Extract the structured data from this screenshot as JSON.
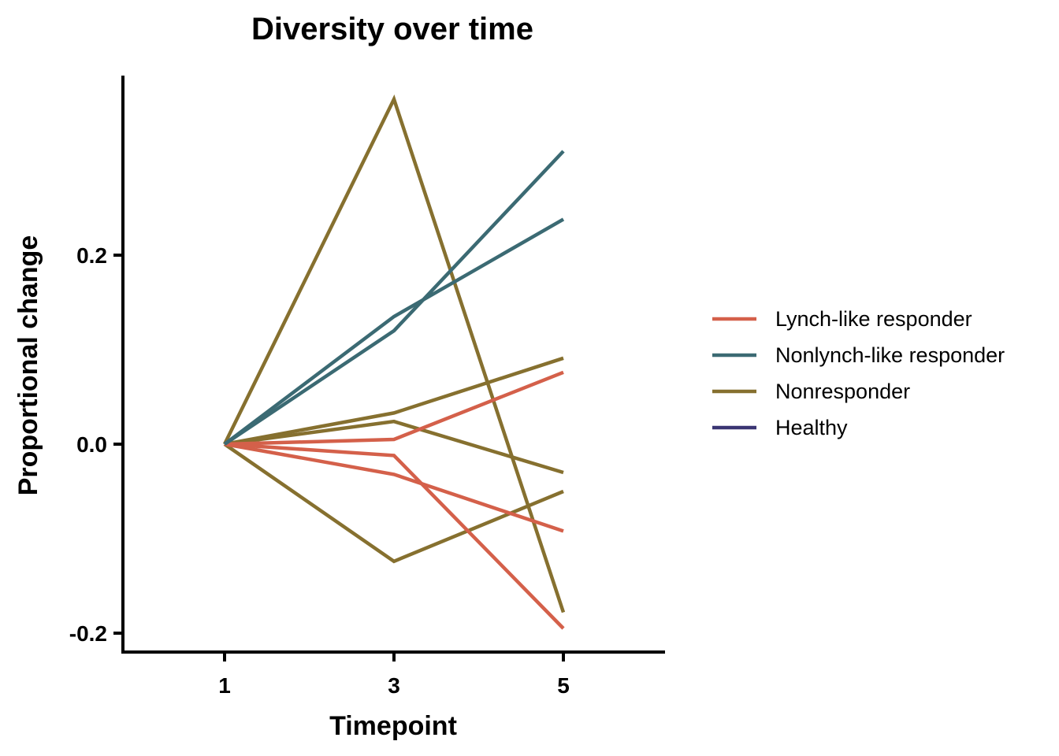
{
  "chart_data": {
    "type": "line",
    "title": "Diversity over time",
    "xlabel": "Timepoint",
    "ylabel": "Proportional change",
    "x": [
      1,
      3,
      5
    ],
    "x_tick_labels": [
      "1",
      "3",
      "5"
    ],
    "xlim": [
      -0.2,
      6.2
    ],
    "ylim": [
      -0.22,
      0.39
    ],
    "y_ticks": [
      -0.2,
      0.0,
      0.2
    ],
    "y_tick_labels": [
      "-0.2",
      "0.0",
      "0.2"
    ],
    "grid": false,
    "legend_position": "right",
    "groups": [
      {
        "name": "Lynch-like responder",
        "color": "#d4604a"
      },
      {
        "name": "Nonlynch-like responder",
        "color": "#3b6a73"
      },
      {
        "name": "Nonresponder",
        "color": "#86702f"
      },
      {
        "name": "Healthy",
        "color": "#3a3573"
      }
    ],
    "series": [
      {
        "group": "Nonresponder",
        "values": [
          0,
          0.365,
          -0.178
        ]
      },
      {
        "group": "Nonresponder",
        "values": [
          0,
          0.033,
          0.091
        ]
      },
      {
        "group": "Nonresponder",
        "values": [
          0,
          0.024,
          -0.03
        ]
      },
      {
        "group": "Nonresponder",
        "values": [
          0,
          -0.124,
          -0.05
        ]
      },
      {
        "group": "Lynch-like responder",
        "values": [
          0,
          0.005,
          0.076
        ]
      },
      {
        "group": "Lynch-like responder",
        "values": [
          0,
          -0.012,
          -0.195
        ]
      },
      {
        "group": "Lynch-like responder",
        "values": [
          0,
          -0.032,
          -0.092
        ]
      },
      {
        "group": "Nonlynch-like responder",
        "values": [
          0,
          0.12,
          0.31
        ]
      },
      {
        "group": "Nonlynch-like responder",
        "values": [
          0,
          0.135,
          0.238
        ]
      }
    ]
  }
}
